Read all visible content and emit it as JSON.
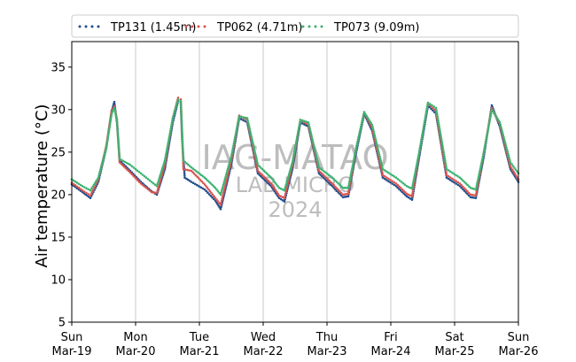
{
  "chart_data": {
    "type": "scatter",
    "title": "",
    "xlabel": "",
    "ylabel": "Air temperature (°C)",
    "ylim": [
      5,
      38
    ],
    "yticks": [
      5,
      10,
      15,
      20,
      25,
      30,
      35
    ],
    "xlim": [
      "2024-03-19T00:00",
      "2024-03-26T00:00"
    ],
    "xticks": [
      {
        "day": "Sun",
        "date": "Mar-19"
      },
      {
        "day": "Mon",
        "date": "Mar-20"
      },
      {
        "day": "Tue",
        "date": "Mar-21"
      },
      {
        "day": "Wed",
        "date": "Mar-22"
      },
      {
        "day": "Thu",
        "date": "Mar-23"
      },
      {
        "day": "Fri",
        "date": "Mar-24"
      },
      {
        "day": "Sat",
        "date": "Mar-25"
      },
      {
        "day": "Sun",
        "date": "Mar-26"
      }
    ],
    "grid": "vertical at day boundaries",
    "legend_position": "top, outside plot",
    "watermark": [
      "IAG-MATAO",
      "LAB MICRO",
      "2024"
    ],
    "series": [
      {
        "name": "TP131 (1.45m)",
        "color": "#1f4e8c",
        "x": [
          "2024-03-19T00:00",
          "2024-03-19T04:00",
          "2024-03-19T07:00",
          "2024-03-19T10:00",
          "2024-03-19T13:00",
          "2024-03-19T15:00",
          "2024-03-19T16:00",
          "2024-03-19T17:00",
          "2024-03-19T18:00",
          "2024-03-19T22:00",
          "2024-03-20T02:00",
          "2024-03-20T06:00",
          "2024-03-20T08:00",
          "2024-03-20T11:00",
          "2024-03-20T14:00",
          "2024-03-20T16:00",
          "2024-03-20T17:00",
          "2024-03-20T17:30",
          "2024-03-20T18:30",
          "2024-03-20T21:00",
          "2024-03-21T02:00",
          "2024-03-21T06:00",
          "2024-03-21T08:00",
          "2024-03-21T12:00",
          "2024-03-21T15:00",
          "2024-03-21T18:00",
          "2024-03-21T22:00",
          "2024-03-22T03:00",
          "2024-03-22T06:00",
          "2024-03-22T08:00",
          "2024-03-22T11:00",
          "2024-03-22T14:00",
          "2024-03-22T17:00",
          "2024-03-22T21:00",
          "2024-03-23T02:00",
          "2024-03-23T06:00",
          "2024-03-23T08:00",
          "2024-03-23T11:00",
          "2024-03-23T14:00",
          "2024-03-23T17:00",
          "2024-03-23T21:00",
          "2024-03-24T02:00",
          "2024-03-24T06:00",
          "2024-03-24T08:00",
          "2024-03-24T11:00",
          "2024-03-24T14:00",
          "2024-03-24T17:00",
          "2024-03-24T21:00",
          "2024-03-25T02:00",
          "2024-03-25T06:00",
          "2024-03-25T08:00",
          "2024-03-25T11:00",
          "2024-03-25T14:00",
          "2024-03-25T17:00",
          "2024-03-25T21:00",
          "2024-03-26T00:00"
        ],
        "values": [
          21.2,
          20.3,
          19.6,
          21.5,
          25.5,
          29.8,
          30.9,
          28.5,
          24.0,
          22.8,
          21.5,
          20.4,
          20.0,
          23.0,
          28.5,
          31.0,
          30.8,
          26.5,
          22.0,
          21.5,
          20.6,
          19.3,
          18.3,
          23.5,
          29.0,
          28.5,
          22.5,
          21.0,
          19.6,
          19.2,
          23.0,
          28.5,
          28.0,
          22.5,
          21.0,
          19.7,
          19.8,
          25.0,
          29.5,
          27.5,
          22.0,
          21.0,
          19.8,
          19.4,
          25.0,
          30.5,
          29.5,
          22.0,
          21.0,
          19.7,
          19.6,
          24.5,
          30.5,
          28.0,
          23.0,
          21.5
        ]
      },
      {
        "name": "TP062 (4.71m)",
        "color": "#d9534f",
        "x": [
          "2024-03-19T00:00",
          "2024-03-19T04:00",
          "2024-03-19T07:00",
          "2024-03-19T10:00",
          "2024-03-19T13:00",
          "2024-03-19T15:00",
          "2024-03-19T16:00",
          "2024-03-19T17:00",
          "2024-03-19T18:00",
          "2024-03-19T22:00",
          "2024-03-20T02:00",
          "2024-03-20T06:00",
          "2024-03-20T08:00",
          "2024-03-20T11:00",
          "2024-03-20T14:00",
          "2024-03-20T16:00",
          "2024-03-20T17:00",
          "2024-03-20T18:00",
          "2024-03-20T21:00",
          "2024-03-21T02:00",
          "2024-03-21T06:00",
          "2024-03-21T08:00",
          "2024-03-21T12:00",
          "2024-03-21T15:00",
          "2024-03-21T18:00",
          "2024-03-21T22:00",
          "2024-03-22T03:00",
          "2024-03-22T06:00",
          "2024-03-22T08:00",
          "2024-03-22T11:00",
          "2024-03-22T14:00",
          "2024-03-22T17:00",
          "2024-03-22T21:00",
          "2024-03-23T02:00",
          "2024-03-23T06:00",
          "2024-03-23T08:00",
          "2024-03-23T11:00",
          "2024-03-23T14:00",
          "2024-03-23T17:00",
          "2024-03-23T21:00",
          "2024-03-24T02:00",
          "2024-03-24T06:00",
          "2024-03-24T08:00",
          "2024-03-24T11:00",
          "2024-03-24T14:00",
          "2024-03-24T17:00",
          "2024-03-24T21:00",
          "2024-03-25T02:00",
          "2024-03-25T06:00",
          "2024-03-25T08:00",
          "2024-03-25T11:00",
          "2024-03-25T14:00",
          "2024-03-25T17:00",
          "2024-03-25T21:00",
          "2024-03-26T00:00"
        ],
        "values": [
          21.4,
          20.5,
          19.9,
          21.8,
          25.8,
          29.9,
          30.4,
          28.8,
          23.8,
          22.6,
          21.3,
          20.3,
          20.2,
          23.5,
          29.0,
          31.4,
          31.2,
          23.0,
          22.8,
          21.2,
          19.6,
          18.8,
          24.0,
          29.3,
          28.8,
          22.8,
          21.3,
          19.9,
          19.6,
          23.5,
          28.8,
          28.2,
          22.8,
          21.3,
          20.0,
          20.1,
          25.5,
          29.7,
          27.8,
          22.3,
          21.3,
          20.1,
          19.8,
          25.5,
          30.8,
          29.8,
          22.3,
          21.3,
          20.0,
          19.9,
          25.0,
          30.2,
          28.3,
          23.3,
          21.8
        ]
      },
      {
        "name": "TP073 (9.09m)",
        "color": "#3cb371",
        "x": [
          "2024-03-19T00:00",
          "2024-03-19T04:00",
          "2024-03-19T07:00",
          "2024-03-19T10:00",
          "2024-03-19T13:00",
          "2024-03-19T15:00",
          "2024-03-19T16:00",
          "2024-03-19T17:00",
          "2024-03-19T18:00",
          "2024-03-19T22:00",
          "2024-03-20T02:00",
          "2024-03-20T06:00",
          "2024-03-20T08:00",
          "2024-03-20T11:00",
          "2024-03-20T14:00",
          "2024-03-20T16:00",
          "2024-03-20T17:00",
          "2024-03-20T18:00",
          "2024-03-20T21:00",
          "2024-03-21T02:00",
          "2024-03-21T06:00",
          "2024-03-21T08:00",
          "2024-03-21T12:00",
          "2024-03-21T15:00",
          "2024-03-21T18:00",
          "2024-03-21T22:00",
          "2024-03-22T03:00",
          "2024-03-22T06:00",
          "2024-03-22T08:00",
          "2024-03-22T11:00",
          "2024-03-22T14:00",
          "2024-03-22T17:00",
          "2024-03-22T21:00",
          "2024-03-23T02:00",
          "2024-03-23T06:00",
          "2024-03-23T08:00",
          "2024-03-23T11:00",
          "2024-03-23T14:00",
          "2024-03-23T17:00",
          "2024-03-23T21:00",
          "2024-03-24T02:00",
          "2024-03-24T06:00",
          "2024-03-24T08:00",
          "2024-03-24T11:00",
          "2024-03-24T14:00",
          "2024-03-24T17:00",
          "2024-03-24T21:00",
          "2024-03-25T02:00",
          "2024-03-25T06:00",
          "2024-03-25T08:00",
          "2024-03-25T11:00",
          "2024-03-25T14:00",
          "2024-03-25T17:00",
          "2024-03-25T21:00",
          "2024-03-26T00:00"
        ],
        "values": [
          21.8,
          21.0,
          20.5,
          22.0,
          25.5,
          29.5,
          30.2,
          28.8,
          24.2,
          23.5,
          22.5,
          21.5,
          21.0,
          24.0,
          29.0,
          31.2,
          31.0,
          24.0,
          23.2,
          22.0,
          20.8,
          20.0,
          24.5,
          29.2,
          29.0,
          23.5,
          22.0,
          20.8,
          20.5,
          23.8,
          28.8,
          28.5,
          23.2,
          22.0,
          20.8,
          20.8,
          25.5,
          29.7,
          28.2,
          23.0,
          22.0,
          21.0,
          20.7,
          25.5,
          30.8,
          30.2,
          23.0,
          22.0,
          20.8,
          20.6,
          25.0,
          30.0,
          28.5,
          23.8,
          22.5
        ]
      }
    ]
  }
}
